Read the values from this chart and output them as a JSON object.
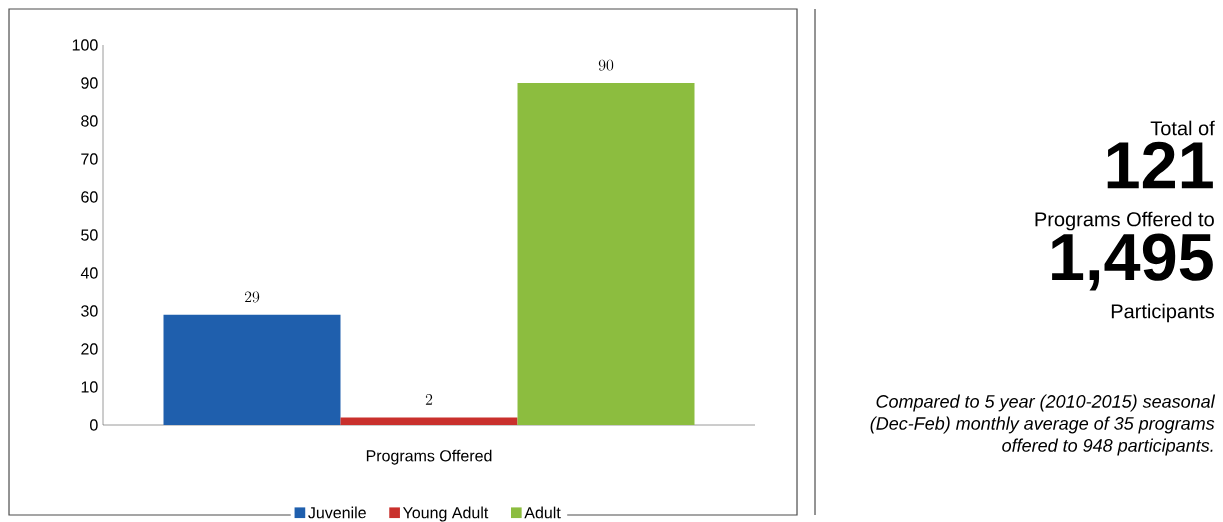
{
  "chart_data": [
    {
      "type": "bar",
      "categories": [
        "Programs Offered"
      ],
      "series": [
        {
          "name": "Juvenile",
          "color": "#1f5fad",
          "values": [
            29
          ]
        },
        {
          "name": "Young Adult",
          "color": "#c9302c",
          "values": [
            2
          ]
        },
        {
          "name": "Adult",
          "color": "#8cbd3f",
          "values": [
            90
          ]
        }
      ],
      "ylim": [
        0,
        100
      ],
      "yticks": [
        0,
        10,
        20,
        30,
        40,
        50,
        60,
        70,
        80,
        90,
        100
      ],
      "data_labels": true,
      "legend": "bottom",
      "grid": false
    },
    {
      "type": "other",
      "annotations": [
        "Total of",
        "121",
        "Programs Offered to",
        "1,495",
        "Participants",
        "Compared to 5 year (2010-2015) seasonal (Dec-Feb) monthly average of 35 programs offered to 948 participants."
      ]
    }
  ]
}
